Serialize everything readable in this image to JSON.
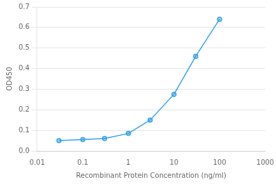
{
  "chart_data": {
    "type": "line",
    "x": [
      0.03,
      0.1,
      0.3,
      1.0,
      3.0,
      10.0,
      30.0,
      100.0
    ],
    "values": [
      0.05,
      0.055,
      0.06,
      0.085,
      0.15,
      0.275,
      0.46,
      0.64
    ],
    "xlabel": "Recombinant Protein Concentration (ng/ml)",
    "ylabel": "OD450",
    "log": "x",
    "xlim": [
      0.01,
      1000
    ],
    "xticks": [
      0.01,
      0.1,
      1,
      10,
      100,
      1000
    ],
    "ylim": [
      0,
      0.7
    ],
    "yticks": [
      {
        "value": 0,
        "label": "0.0"
      },
      0.1,
      0.2,
      0.3,
      0.4,
      0.5,
      0.6,
      0.7
    ],
    "marker": "circle",
    "grid": "y"
  }
}
